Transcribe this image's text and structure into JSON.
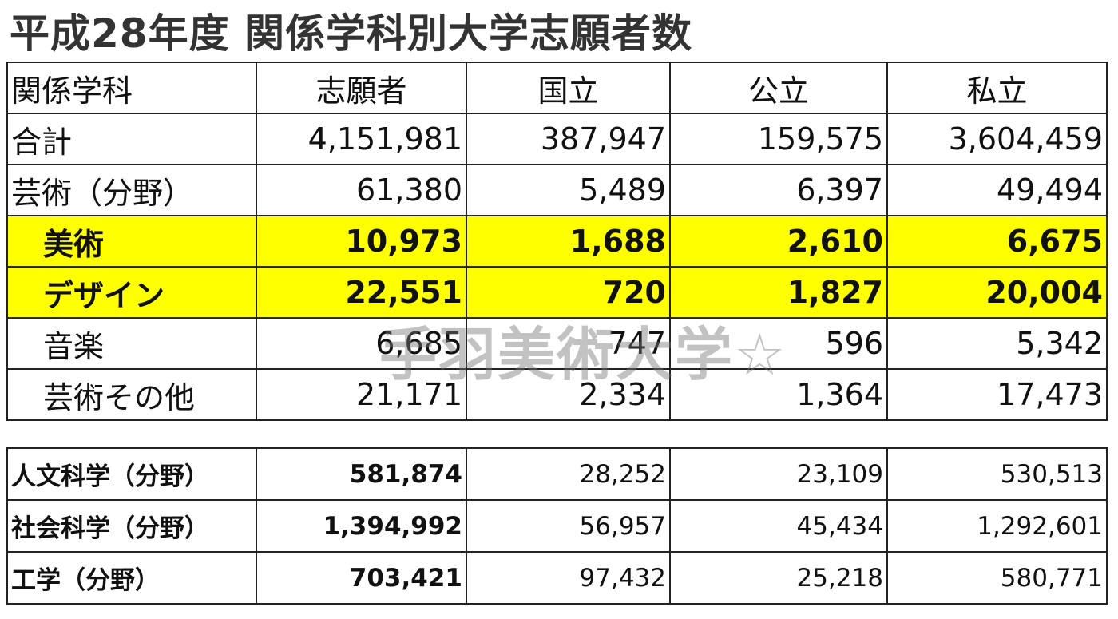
{
  "title": "平成28年度 関係学科別大学志願者数",
  "watermark": "手羽美術大学☆",
  "table": {
    "header": [
      "関係学科",
      "志願者",
      "国立",
      "公立",
      "私立"
    ],
    "rows": [
      [
        "合計",
        "4,151,981",
        "387,947",
        "159,575",
        "3,604,459"
      ],
      [
        "芸術（分野）",
        "61,380",
        "5,489",
        "6,397",
        "49,494"
      ],
      [
        "美術",
        "10,973",
        "1,688",
        "2,610",
        "6,675"
      ],
      [
        "デザイン",
        "22,551",
        "720",
        "1,827",
        "20,004"
      ],
      [
        "音楽",
        "6,685",
        "747",
        "596",
        "5,342"
      ],
      [
        "芸術その他",
        "21,171",
        "2,334",
        "1,364",
        "17,473"
      ]
    ]
  },
  "table2": {
    "rows": [
      [
        "人文科学（分野）",
        "581,874",
        "28,252",
        "23,109",
        "530,513"
      ],
      [
        "社会科学（分野）",
        "1,394,992",
        "56,957",
        "45,434",
        "1,292,601"
      ],
      [
        "工学（分野）",
        "703,421",
        "97,432",
        "25,218",
        "580,771"
      ]
    ]
  }
}
